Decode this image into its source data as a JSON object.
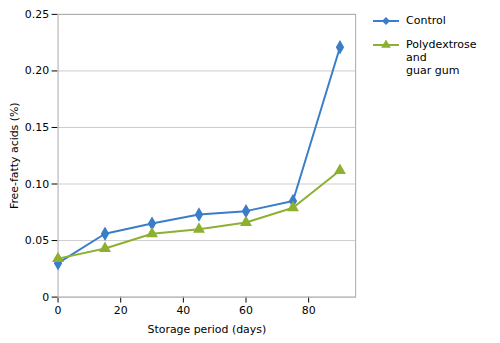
{
  "chart_data": {
    "type": "line",
    "x": [
      0,
      15,
      30,
      45,
      60,
      75,
      90
    ],
    "series": [
      {
        "name": "Control",
        "color": "#3A7DC9",
        "marker": "diamond",
        "values": [
          0.03,
          0.056,
          0.065,
          0.073,
          0.076,
          0.085,
          0.221
        ]
      },
      {
        "name": "Polydextrose and\nguar gum",
        "color": "#8DB030",
        "marker": "triangle",
        "values": [
          0.034,
          0.043,
          0.056,
          0.06,
          0.066,
          0.079,
          0.112
        ]
      }
    ],
    "xlabel": "Storage period (days)",
    "ylabel": "Free-fatty acids (%)",
    "xlim": [
      0,
      95
    ],
    "ylim": [
      0,
      0.25
    ],
    "xticks": [
      0,
      20,
      40,
      60,
      80
    ],
    "yticks": [
      0,
      0.05,
      {
        "value": 0.1,
        "label": "0.10"
      },
      0.15,
      {
        "value": 0.2,
        "label": "0.20"
      },
      0.25
    ],
    "grid": true,
    "legend": "right"
  }
}
